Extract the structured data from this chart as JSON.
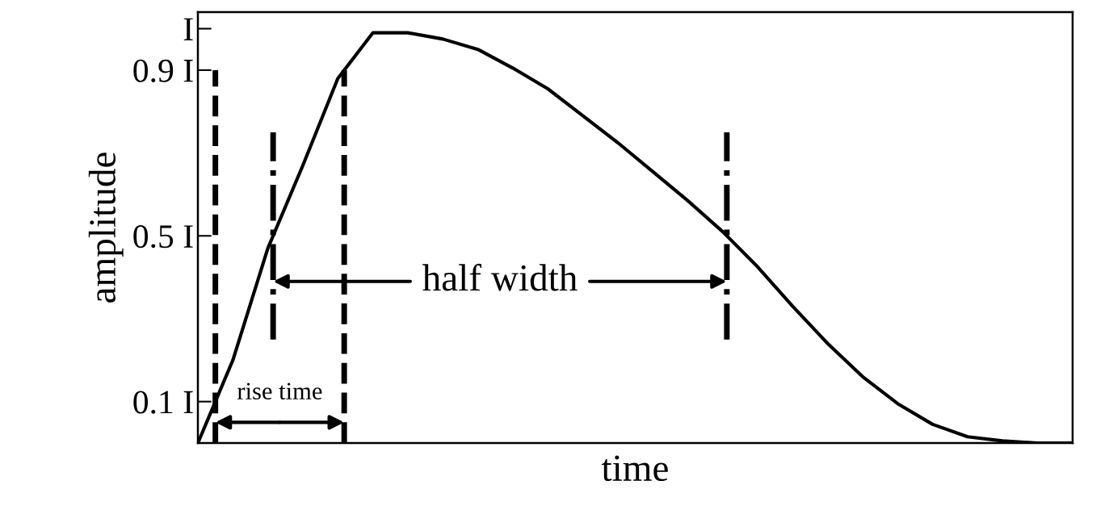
{
  "chart_data": {
    "type": "line",
    "xlabel": "time",
    "ylabel": "amplitude",
    "categories": [
      null,
      null,
      null,
      null,
      null,
      null,
      null,
      null,
      null,
      null,
      null,
      null,
      null,
      null,
      null,
      null,
      null,
      null,
      null,
      null,
      null,
      null,
      null,
      null,
      null,
      null
    ],
    "series": [
      {
        "color": "#000000",
        "values": [
          0,
          0.2,
          0.47,
          0.67,
          0.88,
          0.99,
          0.99,
          0.975,
          0.95,
          0.905,
          0.855,
          0.79,
          0.725,
          0.655,
          0.585,
          0.51,
          0.425,
          0.33,
          0.24,
          0.16,
          0.095,
          0.045,
          0.015,
          0.005,
          0,
          0
        ]
      }
    ],
    "ylim": [
      0,
      1.04
    ],
    "yticks": [
      {
        "value": 0.1,
        "label": "0.1 I"
      },
      {
        "value": 0.5,
        "label": "0.5 I"
      },
      {
        "value": 0.9,
        "label": "0.9 I"
      },
      {
        "value": 1.0,
        "label": "I"
      }
    ],
    "tick_labels": "y",
    "grid": false,
    "line_style": "solid",
    "marker": "none",
    "annotations": [
      "rise time",
      "half width"
    ]
  }
}
